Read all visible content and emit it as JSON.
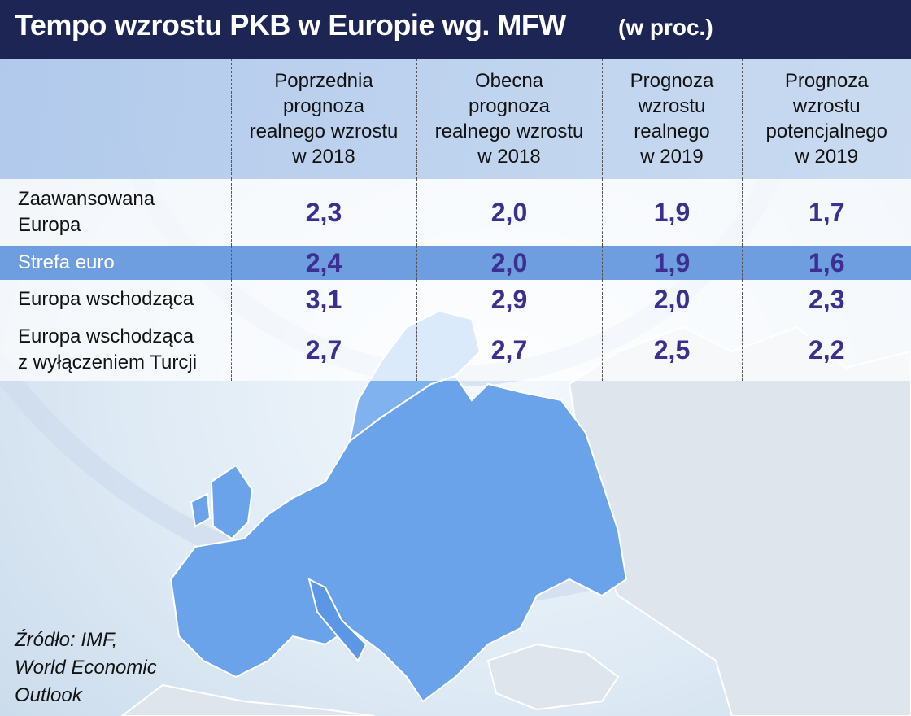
{
  "title": "Tempo wzrostu PKB w Europie wg. MFW",
  "subtitle": "(w proc.)",
  "source": [
    "Źródło: IMF,",
    "World Economic",
    "Outlook"
  ],
  "colors": {
    "title_bg": "#1c2553",
    "highlight_row": "#6e9de0",
    "value_text": "#3b2f8f",
    "map_fill": "#6aa3ea"
  },
  "chart_data": {
    "type": "table",
    "title": "Tempo wzrostu PKB w Europie wg. MFW",
    "unit": "(w proc.)",
    "columns": [
      [
        "Poprzednia",
        "prognoza",
        "realnego wzrostu",
        "w 2018"
      ],
      [
        "Obecna",
        "prognoza",
        "realnego wzrostu",
        "w 2018"
      ],
      [
        "Prognoza",
        "wzrostu",
        "realnego",
        "w 2019"
      ],
      [
        "Prognoza",
        "wzrostu",
        "potencjalnego",
        "w 2019"
      ]
    ],
    "rows": [
      {
        "label": [
          "Zaawansowana",
          "Europa"
        ],
        "values": [
          "2,3",
          "2,0",
          "1,9",
          "1,7"
        ]
      },
      {
        "label": [
          "Strefa euro"
        ],
        "values": [
          "2,4",
          "2,0",
          "1,9",
          "1,6"
        ]
      },
      {
        "label": [
          "Europa wschodząca"
        ],
        "values": [
          "3,1",
          "2,9",
          "2,0",
          "2,3"
        ]
      },
      {
        "label": [
          "Europa wschodząca",
          "z wyłączeniem Turcji"
        ],
        "values": [
          "2,7",
          "2,7",
          "2,5",
          "2,2"
        ]
      }
    ]
  }
}
